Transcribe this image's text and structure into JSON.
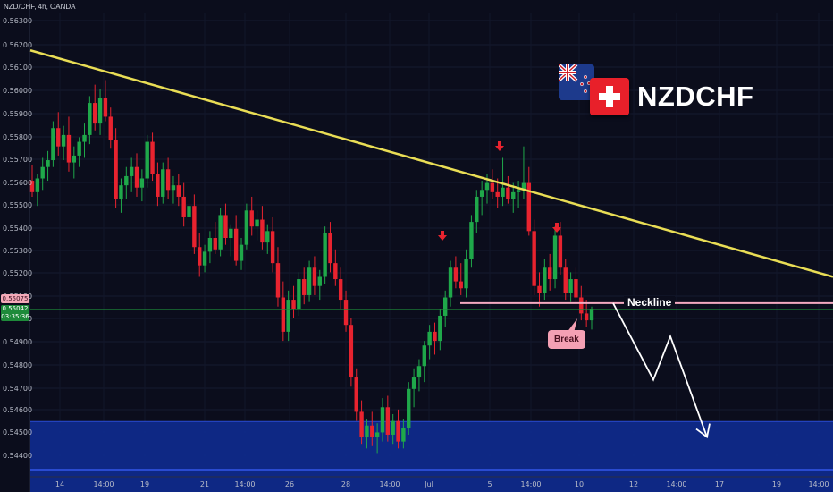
{
  "header": {
    "symbol": "NZD/CHF, 4h, OANDA"
  },
  "brand": {
    "text": "NZDCHF",
    "icons": [
      "new-zealand-flag-icon",
      "swiss-flag-icon"
    ]
  },
  "price_tags": {
    "prev": "0.55075",
    "last": "0.55042",
    "countdown": "03:35:36"
  },
  "annotations": {
    "neckline": "Neckline",
    "break": "Break"
  },
  "colors": {
    "bull": "#1fa84a",
    "bear": "#e8232f",
    "trendline": "#e9dd55",
    "neckline": "#f4a9c0",
    "zone": "#0f2a8a",
    "projection": "#ffffff",
    "marker": "#e8232f"
  },
  "chart_data": {
    "type": "candlestick",
    "title": "NZD/CHF, 4h, OANDA",
    "y_ticks": [
      "0.56300",
      "0.56200",
      "0.56100",
      "0.56000",
      "0.55900",
      "0.55800",
      "0.55700",
      "0.55600",
      "0.55500",
      "0.55400",
      "0.55300",
      "0.55200",
      "0.55100",
      "0.55000",
      "0.54900",
      "0.54800",
      "0.54700",
      "0.54600",
      "0.54500",
      "0.54400"
    ],
    "ylim": [
      0.5432,
      0.5635
    ],
    "x_ticks": [
      "14",
      "14:00",
      "19",
      "21",
      "14:00",
      "26",
      "28",
      "14:00",
      "Jul",
      "5",
      "14:00",
      "10",
      "12",
      "14:00",
      "17",
      "19",
      "14:00"
    ],
    "trendline": {
      "from": 0.5617,
      "to": 0.5518
    },
    "neckline": 0.55065,
    "demand_zone": [
      0.5437,
      0.5454
    ],
    "markers": [
      "down",
      "down",
      "down"
    ],
    "projection": [
      0.55065,
      0.5473,
      0.5492,
      0.5448
    ],
    "series": [
      {
        "values": [
          [
            0.556,
            0.5567,
            0.5553,
            0.5555
          ],
          [
            0.5555,
            0.5563,
            0.5549,
            0.5561
          ],
          [
            0.5561,
            0.557,
            0.5556,
            0.5566
          ],
          [
            0.5566,
            0.5573,
            0.556,
            0.5569
          ],
          [
            0.5569,
            0.5586,
            0.5566,
            0.5583
          ],
          [
            0.5583,
            0.559,
            0.5571,
            0.5575
          ],
          [
            0.5575,
            0.5584,
            0.5569,
            0.558
          ],
          [
            0.558,
            0.5588,
            0.5564,
            0.5568
          ],
          [
            0.5568,
            0.5575,
            0.5561,
            0.5571
          ],
          [
            0.5571,
            0.5579,
            0.5566,
            0.5577
          ],
          [
            0.5577,
            0.5585,
            0.557,
            0.558
          ],
          [
            0.558,
            0.5597,
            0.5576,
            0.5594
          ],
          [
            0.5594,
            0.5602,
            0.5582,
            0.5585
          ],
          [
            0.5585,
            0.56,
            0.558,
            0.5596
          ],
          [
            0.5596,
            0.5604,
            0.5586,
            0.5588
          ],
          [
            0.5588,
            0.5592,
            0.5574,
            0.5578
          ],
          [
            0.5578,
            0.5583,
            0.5548,
            0.5552
          ],
          [
            0.5552,
            0.5561,
            0.5546,
            0.5558
          ],
          [
            0.5558,
            0.5566,
            0.5552,
            0.5562
          ],
          [
            0.5562,
            0.557,
            0.5555,
            0.5566
          ],
          [
            0.5566,
            0.5572,
            0.5553,
            0.5557
          ],
          [
            0.5557,
            0.5565,
            0.5551,
            0.5561
          ],
          [
            0.5561,
            0.558,
            0.5557,
            0.5577
          ],
          [
            0.5577,
            0.5581,
            0.556,
            0.5563
          ],
          [
            0.5563,
            0.5568,
            0.5549,
            0.5553
          ],
          [
            0.5553,
            0.5568,
            0.555,
            0.5565
          ],
          [
            0.5565,
            0.557,
            0.5552,
            0.5556
          ],
          [
            0.5556,
            0.5562,
            0.555,
            0.5558
          ],
          [
            0.5558,
            0.5563,
            0.5549,
            0.5553
          ],
          [
            0.5553,
            0.5559,
            0.554,
            0.5544
          ],
          [
            0.5544,
            0.5552,
            0.5538,
            0.5549
          ],
          [
            0.5549,
            0.5554,
            0.5528,
            0.5531
          ],
          [
            0.5531,
            0.5537,
            0.5518,
            0.5523
          ],
          [
            0.5523,
            0.5532,
            0.552,
            0.5529
          ],
          [
            0.5529,
            0.5538,
            0.5524,
            0.5535
          ],
          [
            0.5535,
            0.5542,
            0.5528,
            0.553
          ],
          [
            0.553,
            0.5548,
            0.5527,
            0.5545
          ],
          [
            0.5545,
            0.555,
            0.5532,
            0.5535
          ],
          [
            0.5535,
            0.5541,
            0.5527,
            0.5539
          ],
          [
            0.5539,
            0.5545,
            0.5523,
            0.5525
          ],
          [
            0.5525,
            0.5535,
            0.5521,
            0.5532
          ],
          [
            0.5532,
            0.555,
            0.553,
            0.5547
          ],
          [
            0.5547,
            0.5553,
            0.5536,
            0.554
          ],
          [
            0.554,
            0.5547,
            0.5534,
            0.5543
          ],
          [
            0.5543,
            0.5549,
            0.553,
            0.5533
          ],
          [
            0.5533,
            0.5541,
            0.5528,
            0.5538
          ],
          [
            0.5538,
            0.5544,
            0.552,
            0.5524
          ],
          [
            0.5524,
            0.5531,
            0.5505,
            0.5509
          ],
          [
            0.5509,
            0.5516,
            0.549,
            0.5494
          ],
          [
            0.5494,
            0.5512,
            0.549,
            0.5508
          ],
          [
            0.5508,
            0.5514,
            0.55,
            0.5504
          ],
          [
            0.5504,
            0.552,
            0.5501,
            0.5517
          ],
          [
            0.5517,
            0.5522,
            0.5506,
            0.551
          ],
          [
            0.551,
            0.5525,
            0.5507,
            0.5522
          ],
          [
            0.5522,
            0.5527,
            0.551,
            0.5514
          ],
          [
            0.5514,
            0.5521,
            0.5508,
            0.5518
          ],
          [
            0.5518,
            0.554,
            0.5515,
            0.5537
          ],
          [
            0.5537,
            0.5542,
            0.552,
            0.5524
          ],
          [
            0.5524,
            0.553,
            0.5514,
            0.5517
          ],
          [
            0.5517,
            0.5522,
            0.5504,
            0.5508
          ],
          [
            0.5508,
            0.5512,
            0.5494,
            0.5497
          ],
          [
            0.5497,
            0.55,
            0.547,
            0.5474
          ],
          [
            0.5474,
            0.5478,
            0.5455,
            0.5459
          ],
          [
            0.5459,
            0.5464,
            0.5445,
            0.5448
          ],
          [
            0.5448,
            0.5456,
            0.5443,
            0.5453
          ],
          [
            0.5453,
            0.5459,
            0.5444,
            0.5448
          ],
          [
            0.5448,
            0.5454,
            0.5441,
            0.545
          ],
          [
            0.545,
            0.5465,
            0.5446,
            0.5461
          ],
          [
            0.5461,
            0.5466,
            0.5446,
            0.5449
          ],
          [
            0.5449,
            0.5458,
            0.5445,
            0.5455
          ],
          [
            0.5455,
            0.546,
            0.5443,
            0.5446
          ],
          [
            0.5446,
            0.5456,
            0.5443,
            0.5452
          ],
          [
            0.5452,
            0.5472,
            0.5449,
            0.5469
          ],
          [
            0.5469,
            0.5478,
            0.5461,
            0.5474
          ],
          [
            0.5474,
            0.5482,
            0.5468,
            0.5479
          ],
          [
            0.5479,
            0.549,
            0.5472,
            0.5488
          ],
          [
            0.5488,
            0.5497,
            0.5482,
            0.5494
          ],
          [
            0.5494,
            0.5498,
            0.5484,
            0.549
          ],
          [
            0.549,
            0.5504,
            0.5486,
            0.5501
          ],
          [
            0.5501,
            0.5512,
            0.5496,
            0.5509
          ],
          [
            0.5509,
            0.5525,
            0.5505,
            0.5522
          ],
          [
            0.5522,
            0.5527,
            0.5513,
            0.5516
          ],
          [
            0.5516,
            0.5524,
            0.551,
            0.5513
          ],
          [
            0.5513,
            0.553,
            0.5509,
            0.5526
          ],
          [
            0.5526,
            0.5545,
            0.5522,
            0.5542
          ],
          [
            0.5542,
            0.5556,
            0.5537,
            0.5553
          ],
          [
            0.5553,
            0.556,
            0.5545,
            0.5556
          ],
          [
            0.5556,
            0.5563,
            0.555,
            0.5559
          ],
          [
            0.5559,
            0.5565,
            0.5552,
            0.5555
          ],
          [
            0.5555,
            0.5561,
            0.5548,
            0.5553
          ],
          [
            0.5553,
            0.557,
            0.5549,
            0.5557
          ],
          [
            0.5557,
            0.5562,
            0.555,
            0.5552
          ],
          [
            0.5552,
            0.5559,
            0.5546,
            0.5555
          ],
          [
            0.5555,
            0.556,
            0.5548,
            0.5556
          ],
          [
            0.5556,
            0.5575,
            0.5552,
            0.5559
          ],
          [
            0.5559,
            0.5566,
            0.5536,
            0.5538
          ],
          [
            0.5538,
            0.5543,
            0.551,
            0.5514
          ],
          [
            0.5514,
            0.552,
            0.5505,
            0.5511
          ],
          [
            0.5511,
            0.5526,
            0.5508,
            0.5522
          ],
          [
            0.5522,
            0.5528,
            0.5512,
            0.5517
          ],
          [
            0.5517,
            0.554,
            0.5513,
            0.5536
          ],
          [
            0.5536,
            0.5542,
            0.5519,
            0.5522
          ],
          [
            0.5522,
            0.5526,
            0.5508,
            0.5511
          ],
          [
            0.5511,
            0.552,
            0.5507,
            0.5517
          ],
          [
            0.5517,
            0.5522,
            0.5506,
            0.5509
          ],
          [
            0.5509,
            0.5514,
            0.5499,
            0.5502
          ],
          [
            0.5502,
            0.5508,
            0.5496,
            0.5499
          ],
          [
            0.5499,
            0.5505,
            0.5495,
            0.5504
          ]
        ]
      }
    ]
  }
}
